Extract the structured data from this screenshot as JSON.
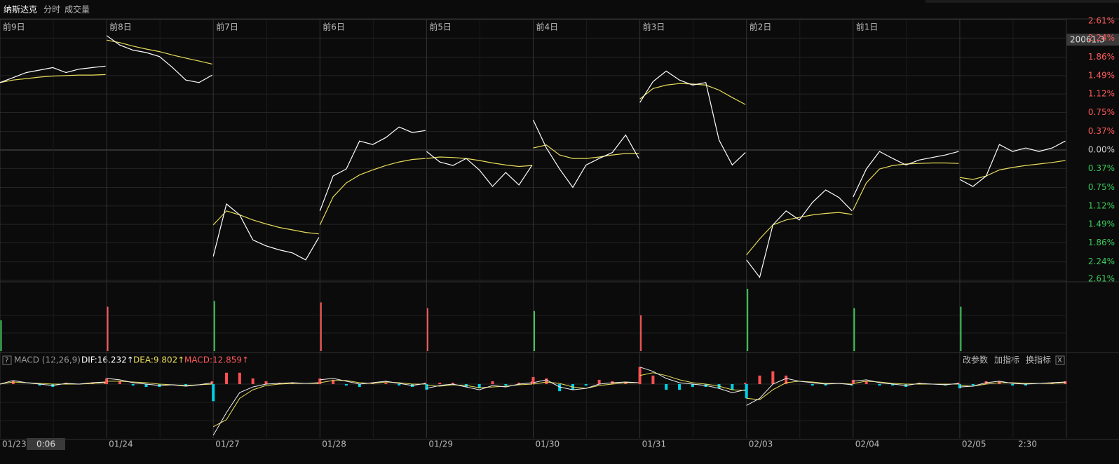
{
  "header": {
    "title": "纳斯达克",
    "tabs": [
      "分时",
      "成交量"
    ]
  },
  "chart_data": {
    "type": "line",
    "price_color": "#ffffff",
    "avg_color": "#e8dc5a",
    "up_color": "#ff5a5a",
    "down_color": "#3cc85a",
    "ylim": [
      -2.61,
      2.61
    ],
    "yticks": [
      {
        "value": 2.61,
        "label": "2.61%"
      },
      {
        "value": 2.24,
        "label": "2.24%"
      },
      {
        "value": 1.86,
        "label": "1.86%"
      },
      {
        "value": 1.49,
        "label": "1.49%"
      },
      {
        "value": 1.12,
        "label": "1.12%"
      },
      {
        "value": 0.75,
        "label": "0.75%"
      },
      {
        "value": 0.37,
        "label": "0.37%"
      },
      {
        "value": 0,
        "label": "0.00%"
      },
      {
        "value": -0.37,
        "label": "0.37%"
      },
      {
        "value": -0.75,
        "label": "0.75%"
      },
      {
        "value": -1.12,
        "label": "1.12%"
      },
      {
        "value": -1.49,
        "label": "1.49%"
      },
      {
        "value": -1.86,
        "label": "1.86%"
      },
      {
        "value": -2.24,
        "label": "2.24%"
      },
      {
        "value": -2.61,
        "label": "2.61%"
      }
    ],
    "last_price_label": "20061.3",
    "cursor_time": "0:06",
    "time_label": "2:30",
    "days": [
      {
        "top_label": "前9日",
        "date": "01/23",
        "price": [
          1.35,
          1.45,
          1.55,
          1.6,
          1.65,
          1.55,
          1.62,
          1.65,
          1.68
        ],
        "avg": [
          1.35,
          1.4,
          1.43,
          1.46,
          1.48,
          1.49,
          1.5,
          1.5,
          1.51
        ],
        "volume": 43,
        "volume_up": false,
        "dif": [
          0,
          25,
          10,
          0,
          -10,
          5,
          0,
          10,
          15
        ],
        "dea": [
          0,
          15,
          10,
          5,
          0,
          0,
          0,
          5,
          10
        ],
        "hist": [
          0,
          20,
          0,
          -10,
          -20,
          10,
          0,
          10,
          10
        ]
      },
      {
        "top_label": "前8日",
        "date": "01/24",
        "price": [
          2.29,
          2.1,
          2.0,
          1.95,
          1.87,
          1.65,
          1.4,
          1.35,
          1.5
        ],
        "avg": [
          2.2,
          2.15,
          2.08,
          2.02,
          1.97,
          1.9,
          1.84,
          1.78,
          1.72
        ],
        "volume": 62,
        "volume_up": true,
        "dif": [
          40,
          30,
          10,
          0,
          -10,
          -5,
          -15,
          -5,
          10
        ],
        "dea": [
          20,
          20,
          15,
          10,
          0,
          -5,
          -10,
          -5,
          0
        ],
        "hist": [
          40,
          20,
          -10,
          -20,
          -20,
          0,
          -10,
          0,
          20
        ]
      },
      {
        "top_label": "前7日",
        "date": "01/27",
        "price": [
          -2.13,
          -1.08,
          -1.3,
          -1.8,
          -1.92,
          -2.0,
          -2.06,
          -2.2,
          -1.75
        ],
        "avg": [
          -1.5,
          -1.22,
          -1.3,
          -1.4,
          -1.48,
          -1.55,
          -1.6,
          -1.65,
          -1.68
        ],
        "volume": 70,
        "volume_up": false,
        "dif": [
          -360,
          -200,
          -60,
          -20,
          0,
          5,
          10,
          5,
          10
        ],
        "dea": [
          -300,
          -250,
          -100,
          -40,
          -10,
          0,
          5,
          5,
          5
        ],
        "hist": [
          -120,
          80,
          80,
          40,
          20,
          10,
          10,
          0,
          10
        ]
      },
      {
        "top_label": "前6日",
        "date": "01/28",
        "price": [
          -1.22,
          -0.52,
          -0.38,
          0.18,
          0.11,
          0.25,
          0.46,
          0.35,
          0.39
        ],
        "avg": [
          -1.5,
          -0.94,
          -0.66,
          -0.5,
          -0.4,
          -0.31,
          -0.24,
          -0.19,
          -0.17
        ],
        "volume": 68,
        "volume_up": true,
        "dif": [
          30,
          40,
          20,
          0,
          10,
          20,
          5,
          -10,
          5
        ],
        "dea": [
          10,
          25,
          25,
          10,
          5,
          15,
          10,
          0,
          0
        ],
        "hist": [
          40,
          30,
          -10,
          -20,
          10,
          10,
          -10,
          -20,
          10
        ]
      },
      {
        "top_label": "前5日",
        "date": "01/29",
        "price": [
          -0.03,
          -0.24,
          -0.31,
          -0.17,
          -0.4,
          -0.73,
          -0.45,
          -0.7,
          -0.3
        ],
        "avg": [
          -0.17,
          -0.14,
          -0.15,
          -0.17,
          -0.21,
          -0.26,
          -0.3,
          -0.33,
          -0.31
        ],
        "volume": 60,
        "volume_up": true,
        "dif": [
          -30,
          -10,
          0,
          -20,
          -40,
          -10,
          -20,
          0,
          10
        ],
        "dea": [
          -10,
          -15,
          -5,
          -10,
          -25,
          -20,
          -15,
          -5,
          0
        ],
        "hist": [
          -40,
          10,
          10,
          -20,
          -30,
          20,
          -10,
          10,
          20
        ]
      },
      {
        "top_label": "前4日",
        "date": "01/30",
        "price": [
          0.6,
          0.04,
          -0.38,
          -0.75,
          -0.3,
          -0.17,
          -0.05,
          0.3,
          -0.17
        ],
        "avg": [
          0.04,
          0.1,
          -0.1,
          -0.17,
          -0.17,
          -0.14,
          -0.1,
          -0.07,
          -0.07
        ],
        "volume": 56,
        "volume_up": false,
        "dif": [
          10,
          30,
          -20,
          -40,
          -30,
          0,
          10,
          15,
          10
        ],
        "dea": [
          0,
          15,
          5,
          -20,
          -30,
          -10,
          0,
          10,
          10
        ],
        "hist": [
          50,
          40,
          -50,
          -40,
          -10,
          30,
          20,
          10,
          0
        ]
      },
      {
        "top_label": "前3日",
        "date": "01/31",
        "price": [
          0.95,
          1.37,
          1.58,
          1.4,
          1.3,
          1.35,
          0.2,
          -0.3,
          -0.05
        ],
        "avg": [
          1.02,
          1.23,
          1.3,
          1.33,
          1.32,
          1.3,
          1.2,
          1.05,
          0.91
        ],
        "volume": 50,
        "volume_up": true,
        "dif": [
          120,
          90,
          40,
          10,
          0,
          -10,
          -30,
          -60,
          -40
        ],
        "dea": [
          60,
          80,
          60,
          30,
          10,
          0,
          -15,
          -40,
          -45
        ],
        "hist": [
          120,
          60,
          -40,
          -40,
          -20,
          -20,
          -30,
          -40,
          10
        ]
      },
      {
        "top_label": "前2日",
        "date": "02/03",
        "price": [
          -2.2,
          -2.55,
          -1.5,
          -1.22,
          -1.4,
          -1.05,
          -0.8,
          -0.95,
          -1.22
        ],
        "avg": [
          -2.1,
          -1.78,
          -1.5,
          -1.4,
          -1.35,
          -1.3,
          -1.27,
          -1.25,
          -1.29
        ],
        "volume": 87,
        "volume_up": false,
        "dif": [
          -150,
          -100,
          0,
          40,
          20,
          10,
          0,
          5,
          -5
        ],
        "dea": [
          -100,
          -110,
          -40,
          10,
          20,
          15,
          5,
          5,
          0
        ],
        "hist": [
          -100,
          60,
          90,
          60,
          0,
          -10,
          -10,
          0,
          -10
        ]
      },
      {
        "top_label": "前1日",
        "date": "02/04",
        "price": [
          -0.94,
          -0.38,
          -0.03,
          -0.17,
          -0.3,
          -0.2,
          -0.15,
          -0.1,
          -0.03
        ],
        "avg": [
          -1.2,
          -0.66,
          -0.38,
          -0.31,
          -0.28,
          -0.27,
          -0.26,
          -0.26,
          -0.27
        ],
        "volume": 60,
        "volume_up": false,
        "dif": [
          20,
          30,
          10,
          0,
          -10,
          5,
          0,
          -5,
          5
        ],
        "dea": [
          5,
          20,
          15,
          5,
          0,
          0,
          0,
          0,
          0
        ],
        "hist": [
          30,
          20,
          -10,
          -10,
          -20,
          10,
          0,
          -10,
          10
        ]
      },
      {
        "top_label": null,
        "date": "02/05",
        "price": [
          -0.59,
          -0.73,
          -0.52,
          0.11,
          -0.03,
          0.04,
          -0.03,
          0.04,
          0.18
        ],
        "avg": [
          -0.55,
          -0.59,
          -0.52,
          -0.4,
          -0.35,
          -0.31,
          -0.28,
          -0.25,
          -0.21
        ],
        "volume": 62,
        "volume_up": false,
        "dif": [
          -20,
          -15,
          10,
          20,
          5,
          0,
          5,
          10,
          15
        ],
        "dea": [
          -10,
          -15,
          0,
          10,
          10,
          5,
          5,
          5,
          10
        ],
        "hist": [
          -30,
          -10,
          20,
          20,
          -10,
          -10,
          0,
          10,
          20
        ]
      }
    ]
  },
  "indicator": {
    "help": "?",
    "name": "MACD (12,26,9)",
    "dif": "DIF:16.232↑",
    "dea": "DEA:9.802↑",
    "macd": "MACD:12.859↑",
    "buttons": [
      "改参数",
      "加指标",
      "换指标"
    ],
    "close": "X"
  }
}
